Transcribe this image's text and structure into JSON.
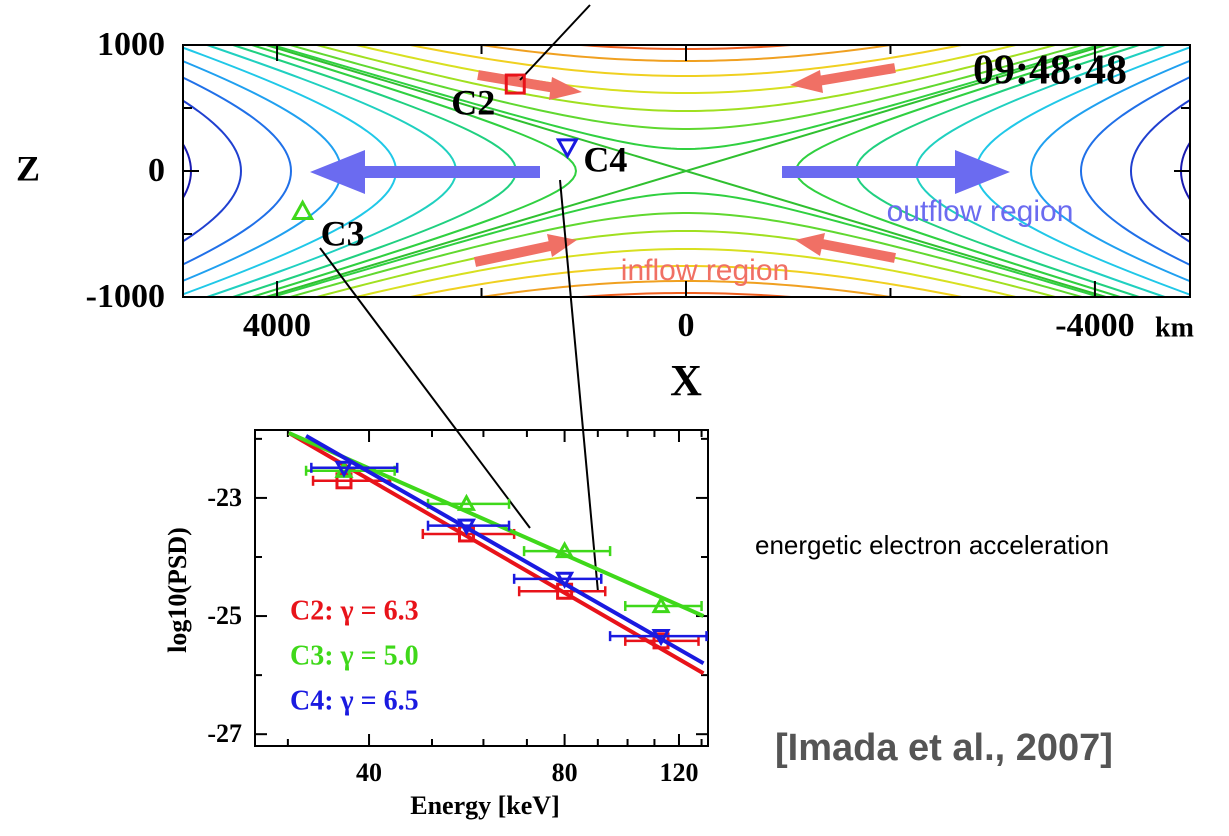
{
  "chart_data": [
    {
      "type": "contour",
      "x_label": "X",
      "y_label": "Z",
      "x_unit": "km",
      "xlim": [
        4920,
        -4930
      ],
      "xticks": [
        4000,
        0,
        -4000
      ],
      "xminor": [
        2000,
        -2000
      ],
      "ylim": [
        -1000,
        1000
      ],
      "yticks": [
        1000,
        0,
        -1000
      ],
      "yminor": [
        500,
        -500
      ],
      "annotations": [
        "09:48:48",
        "outflow region",
        "inflow region"
      ],
      "markers": [
        {
          "label": "C2",
          "x": 1670,
          "z": 690,
          "color": "#e8131a",
          "shape": "square"
        },
        {
          "label": "C3",
          "x": 3750,
          "z": -320,
          "color": "#3fd81a",
          "shape": "triangle-up"
        },
        {
          "label": "C4",
          "x": 1160,
          "z": 190,
          "color": "#1a1ae0",
          "shape": "triangle-down"
        }
      ]
    },
    {
      "type": "scatter",
      "log_x": true,
      "x_label": "Energy [keV]",
      "y_label": "log10(PSD)",
      "xlim": [
        26.7,
        133
      ],
      "xticks": [
        40,
        80,
        120
      ],
      "xminor": [
        30,
        50,
        60,
        70,
        90,
        100,
        110,
        130
      ],
      "ylim": [
        -27.2,
        -21.85
      ],
      "yticks": [
        -23,
        -25,
        -27
      ],
      "yminor": [
        -22,
        -24,
        -26
      ],
      "series": [
        {
          "name": "C2: γ = 6.3",
          "color": "#e8131a",
          "shape": "square",
          "x": [
            36.6,
            56.5,
            80,
            112.6
          ],
          "values": [
            -22.71,
            -23.61,
            -24.58,
            -25.42
          ],
          "xerr_low": [
            32.8,
            48.4,
            68.1,
            99.2
          ],
          "xerr_high": [
            43.1,
            66.9,
            92.4,
            128.6
          ],
          "fit": {
            "x": [
              30.1,
              130.9
            ],
            "y": [
              -21.9,
              -25.97
            ]
          }
        },
        {
          "name": "C3: γ = 5.0",
          "color": "#3fd81a",
          "shape": "triangle-up",
          "x": [
            36.6,
            56.5,
            80,
            112.6
          ],
          "values": [
            -22.54,
            -23.1,
            -23.9,
            -24.83
          ],
          "xerr_low": [
            32.0,
            49.3,
            69.3,
            99.2
          ],
          "xerr_high": [
            43.8,
            65.7,
            94.0,
            130.0
          ],
          "fit": {
            "x": [
              30.1,
              130.9
            ],
            "y": [
              -21.9,
              -25.0
            ]
          }
        },
        {
          "name": "C4: γ = 6.5",
          "color": "#1a1ae0",
          "shape": "triangle-down",
          "x": [
            36.6,
            56.5,
            80,
            112.6
          ],
          "values": [
            -22.49,
            -23.47,
            -24.37,
            -25.34
          ],
          "xerr_low": [
            32.6,
            49.3,
            66.9,
            94.0
          ],
          "xerr_high": [
            44.2,
            65.7,
            91.1,
            132.3
          ],
          "fit": {
            "x": [
              32.0,
              130.9
            ],
            "y": [
              -21.95,
              -25.8
            ]
          }
        }
      ]
    }
  ],
  "notes": {
    "caption": "energetic electron acceleration",
    "citation": "[Imada et al., 2007]"
  }
}
